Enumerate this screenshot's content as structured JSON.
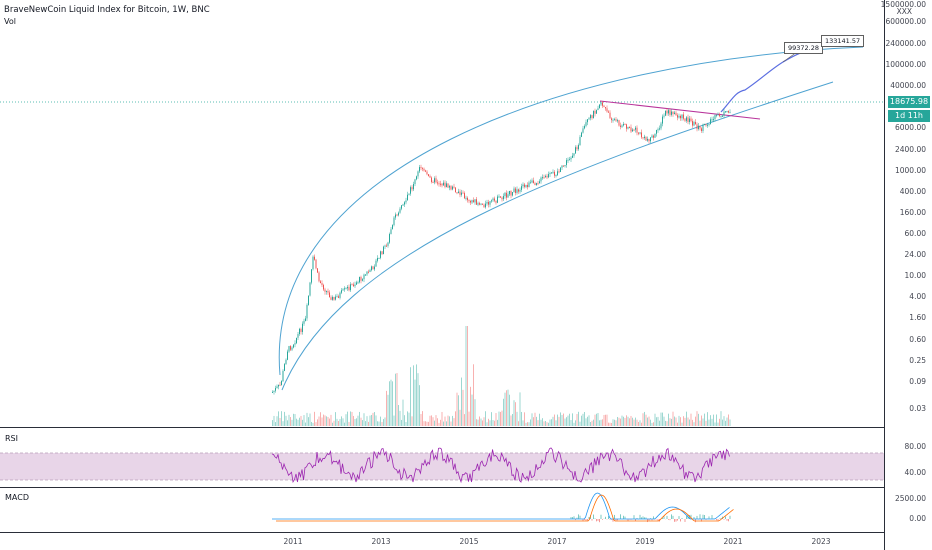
{
  "header": {
    "title": "BraveNewCoin Liquid Index for Bitcoin, 1W, BNC",
    "volume_label": "Vol"
  },
  "price_axis": {
    "ticks": [
      "1500000.00",
      "600000.00",
      "240000.00",
      "100000.00",
      "40000.00",
      "6000.00",
      "2400.00",
      "1000.00",
      "400.00",
      "160.00",
      "60.00",
      "24.00",
      "10.00",
      "4.00",
      "1.60",
      "0.60",
      "0.25",
      "0.09",
      "0.03"
    ],
    "top_marker": "XXX",
    "current_price": "18675.98",
    "countdown": "1d 11h"
  },
  "rsi": {
    "label": "RSI",
    "ticks": [
      "80.00",
      "40.00"
    ]
  },
  "macd": {
    "label": "MACD",
    "ticks": [
      "2500.00",
      "0.00"
    ]
  },
  "time_axis": {
    "ticks": [
      "2011",
      "2013",
      "2015",
      "2017",
      "2019",
      "2021",
      "2023"
    ]
  },
  "annotations": {
    "target_1": "99372.28",
    "target_2": "133141.57"
  },
  "colors": {
    "bull": "#26a69a",
    "bear": "#ef5350",
    "channel": "#4fa3d1",
    "trendline": "#b8339a",
    "projection": "#5b6ee1",
    "rsi_line": "#9c27b0",
    "rsi_band": "#e8d5e8"
  }
}
